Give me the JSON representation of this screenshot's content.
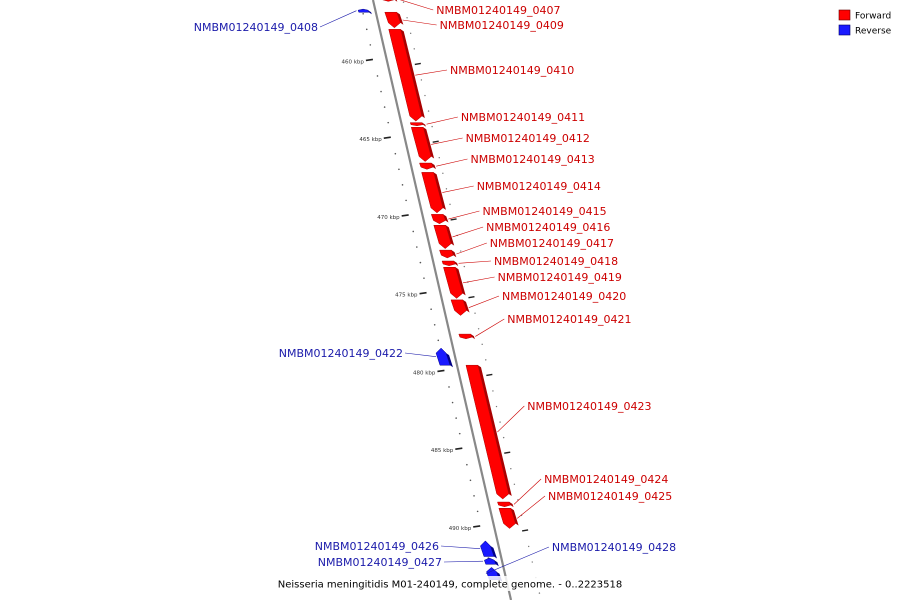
{
  "caption": "Neisseria meningitidis M01-240149, complete genome. - 0..2223518",
  "legend": [
    {
      "label": "Forward",
      "color": "#ff0000"
    },
    {
      "label": "Reverse",
      "color": "#0000ff"
    }
  ],
  "colors": {
    "forward": "#ff0000",
    "forward_side": "#aa0000",
    "forward_label": "#cc0000",
    "reverse": "#1a1aff",
    "reverse_side": "#000088",
    "reverse_label": "#1a1aaa",
    "backbone": "#888888",
    "tick": "#222222"
  },
  "scale": {
    "unit": "kbp",
    "labeled_ticks": [
      460,
      465,
      470,
      475,
      480,
      485,
      490
    ]
  },
  "genes": [
    {
      "id": "NMBM01240149_0407",
      "strand": "forward",
      "start_kbp": 455.9,
      "end_kbp": 456.2
    },
    {
      "id": "NMBM01240149_0408",
      "strand": "reverse",
      "start_kbp": 456.7,
      "end_kbp": 456.9
    },
    {
      "id": "NMBM01240149_0409",
      "strand": "forward",
      "start_kbp": 456.9,
      "end_kbp": 457.9
    },
    {
      "id": "NMBM01240149_0410",
      "strand": "forward",
      "start_kbp": 458.0,
      "end_kbp": 463.9
    },
    {
      "id": "NMBM01240149_0411",
      "strand": "forward",
      "start_kbp": 464.0,
      "end_kbp": 464.2
    },
    {
      "id": "NMBM01240149_0412",
      "strand": "forward",
      "start_kbp": 464.3,
      "end_kbp": 466.5
    },
    {
      "id": "NMBM01240149_0413",
      "strand": "forward",
      "start_kbp": 466.6,
      "end_kbp": 467.0
    },
    {
      "id": "NMBM01240149_0414",
      "strand": "forward",
      "start_kbp": 467.2,
      "end_kbp": 469.8
    },
    {
      "id": "NMBM01240149_0415",
      "strand": "forward",
      "start_kbp": 469.9,
      "end_kbp": 470.5
    },
    {
      "id": "NMBM01240149_0416",
      "strand": "forward",
      "start_kbp": 470.6,
      "end_kbp": 472.1
    },
    {
      "id": "NMBM01240149_0417",
      "strand": "forward",
      "start_kbp": 472.2,
      "end_kbp": 472.7
    },
    {
      "id": "NMBM01240149_0418",
      "strand": "forward",
      "start_kbp": 472.9,
      "end_kbp": 473.2
    },
    {
      "id": "NMBM01240149_0419",
      "strand": "forward",
      "start_kbp": 473.3,
      "end_kbp": 475.3
    },
    {
      "id": "NMBM01240149_0420",
      "strand": "forward",
      "start_kbp": 475.4,
      "end_kbp": 476.4
    },
    {
      "id": "NMBM01240149_0421",
      "strand": "forward",
      "start_kbp": 477.6,
      "end_kbp": 477.9
    },
    {
      "id": "NMBM01240149_0422",
      "strand": "reverse",
      "start_kbp": 478.5,
      "end_kbp": 479.6
    },
    {
      "id": "NMBM01240149_0423",
      "strand": "forward",
      "start_kbp": 479.6,
      "end_kbp": 488.2
    },
    {
      "id": "NMBM01240149_0424",
      "strand": "forward",
      "start_kbp": 488.4,
      "end_kbp": 488.7
    },
    {
      "id": "NMBM01240149_0425",
      "strand": "forward",
      "start_kbp": 488.8,
      "end_kbp": 490.1
    },
    {
      "id": "NMBM01240149_0426",
      "strand": "reverse",
      "start_kbp": 490.9,
      "end_kbp": 491.9
    },
    {
      "id": "NMBM01240149_0427",
      "strand": "reverse",
      "start_kbp": 492.0,
      "end_kbp": 492.4
    },
    {
      "id": "NMBM01240149_0428",
      "strand": "reverse",
      "start_kbp": 492.6,
      "end_kbp": 493.4
    }
  ]
}
